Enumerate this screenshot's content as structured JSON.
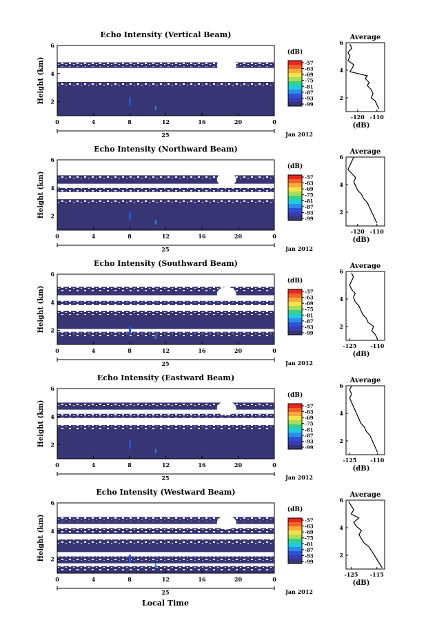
{
  "chart_data": {
    "type": "heatmap",
    "xlabel": "Local Time",
    "date_label": "Jan 2012",
    "day_label": "25",
    "x_range": [
      0,
      24
    ],
    "x_ticks": [
      "0",
      "4",
      "8",
      "12",
      "16",
      "20",
      "0"
    ],
    "ylabel": "Height (km)",
    "y_range": [
      1,
      6
    ],
    "y_ticks": [
      "2",
      "4",
      "6"
    ],
    "colorbar": {
      "unit": "(dB)",
      "ticks": [
        "-57",
        "-63",
        "-69",
        "-75",
        "-81",
        "-87",
        "-93",
        "-99"
      ],
      "colors": [
        "#e8251e",
        "#f1632a",
        "#f6ab3c",
        "#f2e34b",
        "#a9dc58",
        "#37d08d",
        "#1fcbe0",
        "#2f8ce8",
        "#2a52d6",
        "#3a3bb0",
        "#373573"
      ]
    },
    "panels": [
      {
        "title": "Echo Intensity (Vertical Beam)",
        "profile": {
          "title": "Average",
          "xlabel": "(dB)",
          "xlim": [
            -126,
            -106
          ],
          "xticks": [
            "-120",
            "-110"
          ],
          "yticks": [
            "2",
            "4",
            "6"
          ],
          "heights": [
            1.2,
            1.5,
            1.8,
            2.0,
            2.3,
            2.6,
            2.9,
            3.1,
            3.4,
            3.6,
            3.9,
            4.1,
            4.4,
            4.7,
            5.0,
            5.3,
            5.6,
            5.9
          ],
          "values": [
            -109,
            -110,
            -111,
            -113,
            -112,
            -113,
            -115,
            -114,
            -116,
            -115,
            -124,
            -123,
            -122,
            -125,
            -124,
            -125,
            -123,
            -124
          ]
        }
      },
      {
        "title": "Echo Intensity (Northward Beam)",
        "profile": {
          "title": "Average",
          "xlabel": "(dB)",
          "xlim": [
            -126,
            -106
          ],
          "xticks": [
            "-120",
            "-110"
          ],
          "yticks": [
            "2",
            "4",
            "6"
          ],
          "heights": [
            1.2,
            1.5,
            1.8,
            2.1,
            2.4,
            2.7,
            3.0,
            3.3,
            3.6,
            3.9,
            4.2,
            4.5,
            4.8,
            5.1,
            5.4,
            5.7,
            6.0
          ],
          "values": [
            -110,
            -111,
            -112,
            -113,
            -114,
            -115,
            -117,
            -118,
            -120,
            -121,
            -122,
            -121,
            -123,
            -125,
            -124,
            -123,
            -122
          ]
        }
      },
      {
        "title": "Echo Intensity (Southward Beam)",
        "profile": {
          "title": "Average",
          "xlabel": "(dB)",
          "xlim": [
            -127,
            -106
          ],
          "xticks": [
            "-125",
            "-110"
          ],
          "yticks": [
            "2",
            "4",
            "6"
          ],
          "heights": [
            1.1,
            1.4,
            1.7,
            2.0,
            2.3,
            2.6,
            2.9,
            3.2,
            3.5,
            3.8,
            4.1,
            4.4,
            4.7,
            5.0,
            5.3,
            5.6,
            5.9
          ],
          "values": [
            -110,
            -111,
            -113,
            -112,
            -115,
            -116,
            -118,
            -119,
            -120,
            -122,
            -123,
            -122,
            -124,
            -125,
            -124,
            -123,
            -124
          ]
        }
      },
      {
        "title": "Echo Intensity (Eastward Beam)",
        "profile": {
          "title": "Average",
          "xlabel": "(dB)",
          "xlim": [
            -127,
            -106
          ],
          "xticks": [
            "-125",
            "-110"
          ],
          "yticks": [
            "2",
            "4",
            "6"
          ],
          "heights": [
            1.2,
            1.5,
            1.8,
            2.1,
            2.4,
            2.7,
            3.0,
            3.3,
            3.6,
            3.9,
            4.2,
            4.5,
            4.8,
            5.1,
            5.4,
            5.7,
            6.0
          ],
          "values": [
            -110,
            -111,
            -112,
            -113,
            -114,
            -116,
            -117,
            -119,
            -120,
            -121,
            -122,
            -123,
            -124,
            -125,
            -124,
            -125,
            -124
          ]
        }
      },
      {
        "title": "Echo Intensity (Westward Beam)",
        "profile": {
          "title": "Average",
          "xlabel": "(dB)",
          "xlim": [
            -127,
            -112
          ],
          "xticks": [
            "-125",
            "-115"
          ],
          "yticks": [
            "2",
            "4",
            "6"
          ],
          "heights": [
            1.1,
            1.4,
            1.7,
            2.0,
            2.3,
            2.6,
            2.9,
            3.2,
            3.5,
            3.8,
            4.1,
            4.4,
            4.7,
            5.0,
            5.3,
            5.6,
            5.9
          ],
          "values": [
            -113,
            -114,
            -115,
            -116,
            -117,
            -118,
            -120,
            -121,
            -122,
            -121,
            -123,
            -124,
            -122,
            -125,
            -124,
            -125,
            -126
          ]
        }
      }
    ]
  }
}
